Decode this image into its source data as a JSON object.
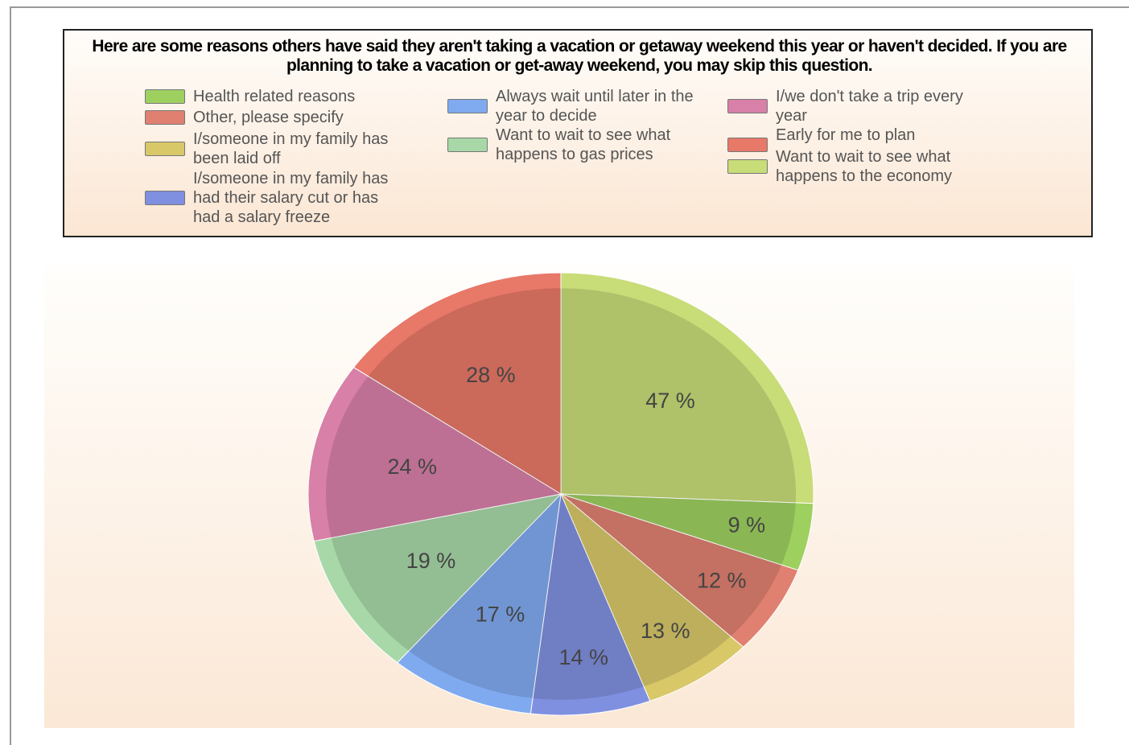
{
  "chart_data": {
    "type": "pie",
    "title": "Here are some reasons others have said they aren't taking a vacation or getaway weekend this year or haven't decided.  If you are planning to take a vacation or get-away weekend, you may skip this question.",
    "categories": [
      "Want to wait to see what happens to the economy",
      "Health related reasons",
      "Other, please specify",
      "I/someone in my family has been laid off",
      "I/someone in my family has had their salary cut or has had a salary freeze",
      "Always wait until later in the year to decide",
      "Want to wait to see what happens to gas prices",
      "I/we don't take a trip every year",
      "Early for me to plan"
    ],
    "values": [
      47,
      9,
      12,
      13,
      14,
      17,
      19,
      24,
      28
    ],
    "value_labels": [
      "47 %",
      "9 %",
      "12 %",
      "13 %",
      "14 %",
      "17 %",
      "19 %",
      "24 %",
      "28 %"
    ],
    "colors": [
      "#c8dc78",
      "#9ed060",
      "#e08070",
      "#d8c868",
      "#8090e0",
      "#80aaf0",
      "#a8d8a8",
      "#d880a8",
      "#e87868"
    ]
  }
}
